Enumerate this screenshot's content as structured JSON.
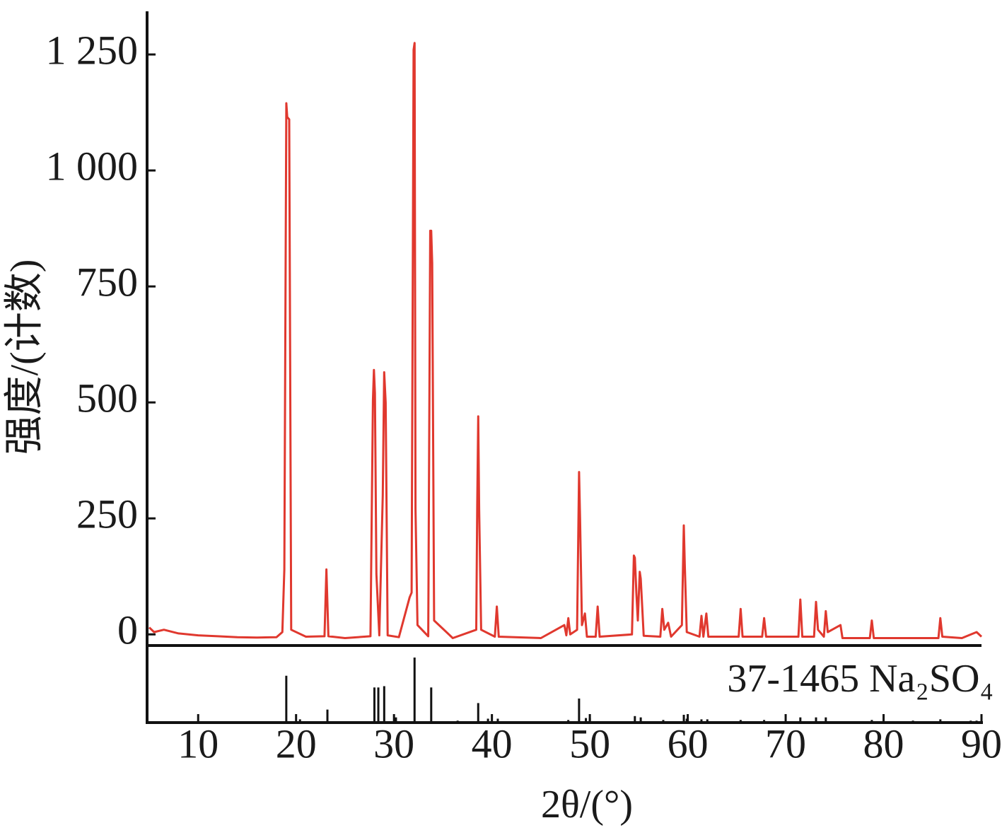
{
  "chart_data": [
    {
      "type": "line",
      "ylabel": "强度/(计数)",
      "xlim": [
        5,
        90
      ],
      "ylim": [
        -24,
        1340
      ],
      "yticks": [
        0,
        250,
        500,
        750,
        {
          "value": 1000,
          "label": "1 000"
        },
        {
          "value": 1250,
          "label": "1 250"
        }
      ],
      "series": [
        {
          "color": "#e0382e",
          "x": [
            5,
            5.5,
            6.5,
            8,
            10,
            12,
            14,
            16,
            18,
            18.6,
            18.8,
            19.0,
            19.1,
            19.3,
            19.5,
            21,
            22.9,
            23.1,
            23.3,
            25,
            27.6,
            27.85,
            27.95,
            28.05,
            28.2,
            28.5,
            28.85,
            29.0,
            29.15,
            29.35,
            30.5,
            31.6,
            31.8,
            32.0,
            32.1,
            32.2,
            32.4,
            33.5,
            33.7,
            33.8,
            33.9,
            34.1,
            36,
            38.4,
            38.5,
            38.6,
            38.7,
            38.9,
            40.3,
            40.5,
            40.7,
            45,
            47.4,
            47.6,
            47.8,
            48.0,
            48.7,
            48.9,
            49.0,
            49.2,
            49.5,
            49.7,
            50.6,
            50.8,
            51.0,
            54.3,
            54.5,
            54.6,
            54.75,
            54.9,
            55.1,
            55.2,
            55.3,
            55.5,
            57.2,
            57.4,
            57.6,
            58.0,
            58.3,
            59.4,
            59.6,
            59.7,
            59.9,
            61.2,
            61.4,
            61.6,
            61.9,
            62.1,
            65.2,
            65.4,
            65.6,
            67.6,
            67.8,
            68.0,
            71.3,
            71.5,
            71.7,
            72.9,
            73.1,
            73.3,
            73.9,
            74.1,
            74.3,
            75.6,
            75.8,
            78.6,
            78.8,
            79.0,
            85.6,
            85.8,
            86.0,
            88,
            89.5,
            90
          ],
          "values": [
            15,
            5,
            10,
            2,
            -2,
            -4,
            -6,
            -7,
            -6,
            5,
            140,
            1145,
            1115,
            1110,
            10,
            -5,
            -4,
            140,
            -4,
            -8,
            -4,
            505,
            570,
            520,
            130,
            -2,
            300,
            565,
            500,
            -2,
            -6,
            80,
            90,
            1260,
            1275,
            270,
            20,
            -4,
            870,
            870,
            800,
            30,
            -8,
            10,
            280,
            470,
            270,
            10,
            -5,
            60,
            -5,
            -8,
            20,
            -2,
            35,
            0,
            10,
            350,
            250,
            20,
            45,
            -5,
            -5,
            60,
            -5,
            0,
            170,
            165,
            90,
            30,
            135,
            120,
            80,
            -3,
            -5,
            55,
            10,
            25,
            -5,
            20,
            235,
            150,
            5,
            -5,
            40,
            -5,
            45,
            -5,
            -5,
            55,
            -5,
            -5,
            35,
            -5,
            -5,
            75,
            -5,
            -5,
            70,
            10,
            -5,
            50,
            5,
            20,
            -8,
            -8,
            30,
            -8,
            -8,
            35,
            -5,
            -8,
            5,
            -5
          ]
        }
      ]
    },
    {
      "type": "stick",
      "name": "37-1465 Na₂SO₄",
      "color": "#111111",
      "xlim": [
        5,
        90
      ],
      "ylim": [
        0,
        100
      ],
      "xlabel": "2θ/(°)",
      "xticks": [
        10,
        20,
        30,
        40,
        50,
        60,
        70,
        80,
        90
      ],
      "x": [
        19.0,
        20.4,
        23.2,
        28.0,
        28.4,
        29.0,
        30.2,
        32.1,
        33.8,
        36.5,
        38.6,
        39.6,
        40.6,
        47.8,
        48.9,
        49.6,
        50.0,
        54.6,
        55.2,
        57.5,
        59.6,
        59.9,
        61.4,
        62.0,
        65.4,
        67.8,
        71.5,
        73.1,
        74.1,
        78.8,
        83.0,
        85.8,
        88.9,
        89.5
      ],
      "values": [
        72,
        5,
        20,
        54,
        54,
        56,
        8,
        100,
        54,
        3,
        30,
        6,
        6,
        4,
        37,
        7,
        7,
        10,
        8,
        4,
        12,
        6,
        5,
        5,
        4,
        4,
        8,
        8,
        8,
        4,
        3,
        5,
        3,
        3
      ]
    }
  ]
}
